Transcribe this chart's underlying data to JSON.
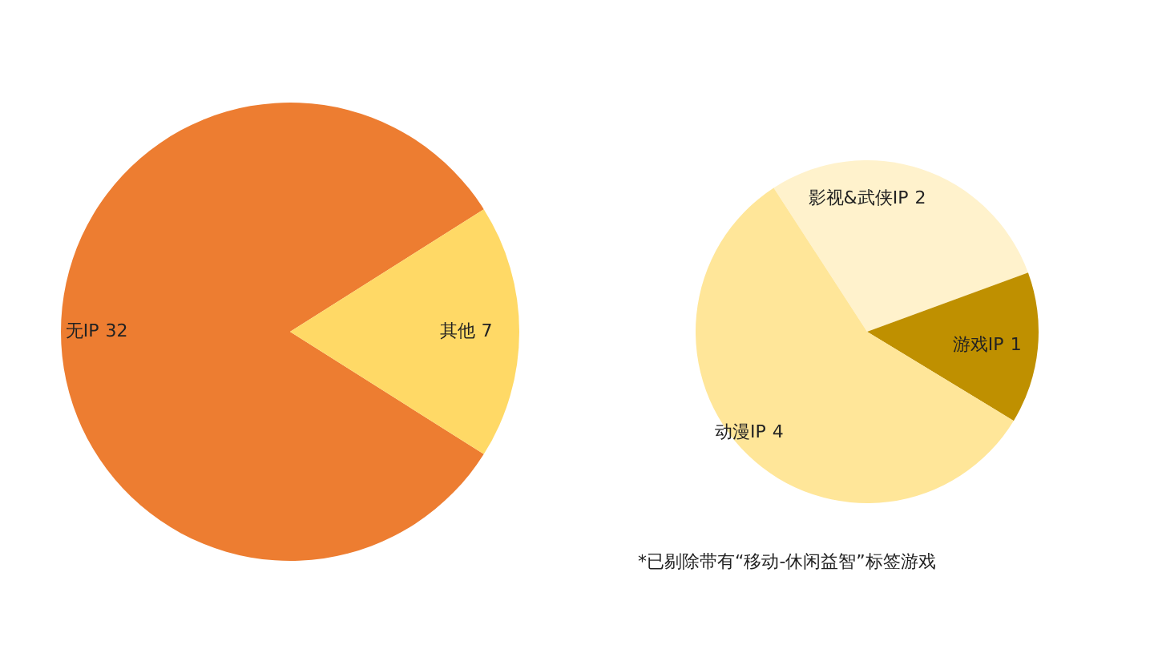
{
  "chart_data": [
    {
      "type": "pie",
      "categories": [
        "无IP",
        "其他"
      ],
      "values": [
        32,
        7
      ],
      "colors": [
        "#ed7d31",
        "#ffd966"
      ],
      "data_labels": true
    },
    {
      "type": "pie",
      "categories": [
        "影视&武侠IP",
        "游戏IP",
        "动漫IP"
      ],
      "values": [
        2,
        1,
        4
      ],
      "colors": [
        "#fff2cc",
        "#bf9000",
        "#ffe699"
      ],
      "data_labels": true,
      "annotations": [
        "*已剔除带有“移动-休闲益智”标签游戏"
      ]
    }
  ]
}
